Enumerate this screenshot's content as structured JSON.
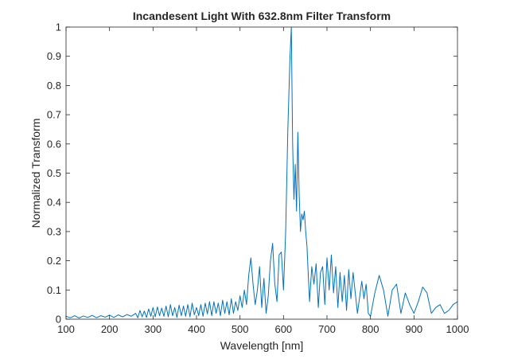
{
  "chart_data": {
    "type": "line",
    "title": "Incandesent Light With 632.8nm Filter Transform",
    "xlabel": "Wavelength [nm]",
    "ylabel": "Normalized Transform",
    "xlim": [
      100,
      1000
    ],
    "ylim": [
      0,
      1
    ],
    "xticks": [
      100,
      200,
      300,
      400,
      500,
      600,
      700,
      800,
      900,
      1000
    ],
    "yticks": [
      0,
      0.1,
      0.2,
      0.3,
      0.4,
      0.5,
      0.6,
      0.7,
      0.8,
      0.9,
      1
    ],
    "xtick_labels": [
      "100",
      "200",
      "300",
      "400",
      "500",
      "600",
      "700",
      "800",
      "900",
      "1000"
    ],
    "ytick_labels": [
      "0",
      "0.1",
      "0.2",
      "0.3",
      "0.4",
      "0.5",
      "0.6",
      "0.7",
      "0.8",
      "0.9",
      "1"
    ],
    "grid": false,
    "box": true,
    "series": [
      {
        "color": "#0072BD",
        "x": [
          100,
          110,
          120,
          130,
          140,
          150,
          160,
          170,
          180,
          190,
          200,
          210,
          220,
          230,
          240,
          250,
          260,
          265,
          270,
          275,
          280,
          285,
          290,
          295,
          300,
          305,
          310,
          315,
          320,
          325,
          330,
          335,
          340,
          345,
          350,
          355,
          360,
          365,
          370,
          375,
          380,
          385,
          390,
          395,
          400,
          405,
          410,
          415,
          420,
          425,
          430,
          435,
          440,
          445,
          450,
          455,
          460,
          465,
          470,
          475,
          480,
          485,
          490,
          495,
          500,
          505,
          510,
          515,
          520,
          525,
          530,
          535,
          540,
          545,
          550,
          555,
          560,
          565,
          570,
          575,
          580,
          585,
          590,
          595,
          600,
          605,
          610,
          615,
          618,
          621,
          624,
          627,
          630,
          633,
          636,
          639,
          642,
          645,
          648,
          651,
          654,
          657,
          660,
          665,
          670,
          675,
          680,
          685,
          690,
          695,
          700,
          705,
          710,
          715,
          720,
          725,
          730,
          735,
          740,
          745,
          750,
          755,
          760,
          770,
          780,
          785,
          790,
          795,
          800,
          810,
          820,
          830,
          840,
          850,
          860,
          870,
          880,
          890,
          900,
          910,
          920,
          930,
          940,
          950,
          960,
          970,
          980,
          990,
          1000
        ],
        "y": [
          0.01,
          0.005,
          0.012,
          0.004,
          0.011,
          0.006,
          0.013,
          0.005,
          0.012,
          0.007,
          0.014,
          0.006,
          0.015,
          0.008,
          0.016,
          0.01,
          0.02,
          0.005,
          0.03,
          0.008,
          0.028,
          0.006,
          0.035,
          0.01,
          0.04,
          0.008,
          0.042,
          0.012,
          0.038,
          0.01,
          0.045,
          0.008,
          0.05,
          0.012,
          0.04,
          0.006,
          0.048,
          0.012,
          0.045,
          0.01,
          0.05,
          0.008,
          0.055,
          0.015,
          0.04,
          0.012,
          0.05,
          0.01,
          0.055,
          0.018,
          0.06,
          0.012,
          0.06,
          0.02,
          0.055,
          0.012,
          0.065,
          0.02,
          0.06,
          0.015,
          0.07,
          0.02,
          0.06,
          0.03,
          0.08,
          0.04,
          0.1,
          0.05,
          0.15,
          0.21,
          0.12,
          0.05,
          0.1,
          0.18,
          0.04,
          0.14,
          0.02,
          0.08,
          0.2,
          0.26,
          0.12,
          0.06,
          0.22,
          0.23,
          0.1,
          0.3,
          0.65,
          0.9,
          1.0,
          0.6,
          0.41,
          0.53,
          0.37,
          0.64,
          0.43,
          0.3,
          0.36,
          0.34,
          0.37,
          0.3,
          0.25,
          0.15,
          0.06,
          0.18,
          0.12,
          0.19,
          0.04,
          0.16,
          0.18,
          0.05,
          0.21,
          0.1,
          0.22,
          0.09,
          0.18,
          0.04,
          0.16,
          0.06,
          0.15,
          0.03,
          0.17,
          0.07,
          0.16,
          0.02,
          0.13,
          0.07,
          0.12,
          0.02,
          0.01,
          0.09,
          0.15,
          0.1,
          0.01,
          0.1,
          0.12,
          0.02,
          0.09,
          0.05,
          0.02,
          0.06,
          0.11,
          0.09,
          0.02,
          0.04,
          0.05,
          0.02,
          0.03,
          0.05,
          0.06
        ]
      }
    ]
  }
}
